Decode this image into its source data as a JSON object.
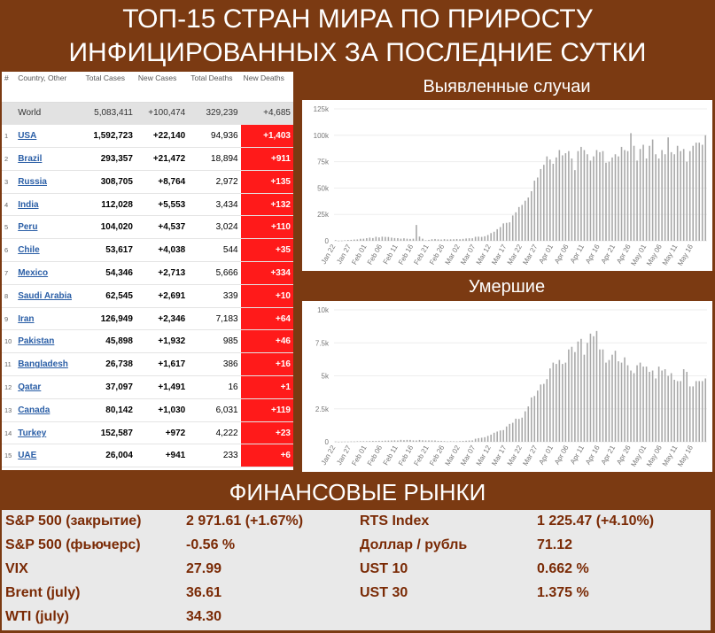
{
  "title_line1": "ТОП-15 СТРАН МИРА ПО ПРИРОСТУ",
  "title_line2": "ИНФИЦИРОВАННЫХ ЗА ПОСЛЕДНИЕ СУТКИ",
  "table": {
    "headers": [
      "#",
      "Country, Other",
      "Total Cases",
      "New Cases",
      "Total Deaths",
      "New Deaths"
    ],
    "world": {
      "name": "World",
      "total_cases": "5,083,411",
      "new_cases": "+100,474",
      "total_deaths": "329,239",
      "new_deaths": "+4,685"
    },
    "rows": [
      {
        "n": "1",
        "country": "USA",
        "total_cases": "1,592,723",
        "new_cases": "+22,140",
        "total_deaths": "94,936",
        "new_deaths": "+1,403"
      },
      {
        "n": "2",
        "country": "Brazil",
        "total_cases": "293,357",
        "new_cases": "+21,472",
        "total_deaths": "18,894",
        "new_deaths": "+911"
      },
      {
        "n": "3",
        "country": "Russia",
        "total_cases": "308,705",
        "new_cases": "+8,764",
        "total_deaths": "2,972",
        "new_deaths": "+135"
      },
      {
        "n": "4",
        "country": "India",
        "total_cases": "112,028",
        "new_cases": "+5,553",
        "total_deaths": "3,434",
        "new_deaths": "+132"
      },
      {
        "n": "5",
        "country": "Peru",
        "total_cases": "104,020",
        "new_cases": "+4,537",
        "total_deaths": "3,024",
        "new_deaths": "+110"
      },
      {
        "n": "6",
        "country": "Chile",
        "total_cases": "53,617",
        "new_cases": "+4,038",
        "total_deaths": "544",
        "new_deaths": "+35"
      },
      {
        "n": "7",
        "country": "Mexico",
        "total_cases": "54,346",
        "new_cases": "+2,713",
        "total_deaths": "5,666",
        "new_deaths": "+334"
      },
      {
        "n": "8",
        "country": "Saudi Arabia",
        "total_cases": "62,545",
        "new_cases": "+2,691",
        "total_deaths": "339",
        "new_deaths": "+10"
      },
      {
        "n": "9",
        "country": "Iran",
        "total_cases": "126,949",
        "new_cases": "+2,346",
        "total_deaths": "7,183",
        "new_deaths": "+64"
      },
      {
        "n": "10",
        "country": "Pakistan",
        "total_cases": "45,898",
        "new_cases": "+1,932",
        "total_deaths": "985",
        "new_deaths": "+46"
      },
      {
        "n": "11",
        "country": "Bangladesh",
        "total_cases": "26,738",
        "new_cases": "+1,617",
        "total_deaths": "386",
        "new_deaths": "+16"
      },
      {
        "n": "12",
        "country": "Qatar",
        "total_cases": "37,097",
        "new_cases": "+1,491",
        "total_deaths": "16",
        "new_deaths": "+1"
      },
      {
        "n": "13",
        "country": "Canada",
        "total_cases": "80,142",
        "new_cases": "+1,030",
        "total_deaths": "6,031",
        "new_deaths": "+119"
      },
      {
        "n": "14",
        "country": "Turkey",
        "total_cases": "152,587",
        "new_cases": "+972",
        "total_deaths": "4,222",
        "new_deaths": "+23"
      },
      {
        "n": "15",
        "country": "UAE",
        "total_cases": "26,004",
        "new_cases": "+941",
        "total_deaths": "233",
        "new_deaths": "+6"
      }
    ]
  },
  "chart_data": [
    {
      "type": "bar",
      "title": "Выявленные случаи",
      "ylim": [
        0,
        125000
      ],
      "yticks": [
        "0",
        "25k",
        "50k",
        "75k",
        "100k",
        "125k"
      ],
      "xtick_labels": [
        "Jan 22",
        "Jan 27",
        "Feb 01",
        "Feb 06",
        "Feb 11",
        "Feb 16",
        "Feb 21",
        "Feb 26",
        "Mar 02",
        "Mar 07",
        "Mar 12",
        "Mar 17",
        "Mar 22",
        "Mar 27",
        "Apr 01",
        "Apr 06",
        "Apr 11",
        "Apr 16",
        "Apr 21",
        "Apr 26",
        "May 01",
        "May 06",
        "May 11",
        "May 16"
      ],
      "values": [
        600,
        100,
        200,
        500,
        800,
        900,
        1200,
        1300,
        1900,
        2000,
        2500,
        3000,
        2600,
        3800,
        3200,
        3900,
        3700,
        3600,
        3000,
        2600,
        2500,
        2000,
        2400,
        2000,
        1800,
        2000,
        15000,
        4000,
        2000,
        500,
        900,
        1500,
        1700,
        1400,
        1200,
        1600,
        1300,
        1400,
        1500,
        1700,
        1500,
        1800,
        2200,
        2400,
        2400,
        3800,
        3900,
        3700,
        4300,
        5500,
        7300,
        8600,
        11000,
        13000,
        16500,
        17000,
        17500,
        24000,
        27000,
        32000,
        34000,
        38000,
        41000,
        47000,
        57000,
        60000,
        68000,
        72000,
        80000,
        77000,
        73000,
        79000,
        86000,
        81000,
        83000,
        85000,
        78000,
        67000,
        85000,
        89000,
        86000,
        82000,
        76000,
        80000,
        86000,
        84000,
        85000,
        74000,
        75000,
        79000,
        82000,
        80000,
        89000,
        86000,
        85000,
        102000,
        90000,
        76000,
        87000,
        91000,
        78000,
        90000,
        96000,
        82000,
        78000,
        86000,
        82000,
        98000,
        84000,
        82000,
        90000,
        85000,
        87000,
        75000,
        85000,
        90000,
        93000,
        93000,
        91000,
        100000
      ],
      "color": "#a8a8a8"
    },
    {
      "type": "bar",
      "title": "Умершие",
      "ylim": [
        0,
        10000
      ],
      "yticks": [
        "0",
        "2.5k",
        "5k",
        "7.5k",
        "10k"
      ],
      "xtick_labels": [
        "Jan 22",
        "Jan 27",
        "Feb 01",
        "Feb 06",
        "Feb 11",
        "Feb 16",
        "Feb 21",
        "Feb 26",
        "Mar 02",
        "Mar 07",
        "Mar 12",
        "Mar 17",
        "Mar 22",
        "Mar 27",
        "Apr 01",
        "Apr 06",
        "Apr 11",
        "Apr 16",
        "Apr 21",
        "Apr 26",
        "May 01",
        "May 06",
        "May 11",
        "May 16"
      ],
      "values": [
        17,
        0,
        8,
        16,
        14,
        26,
        26,
        38,
        43,
        46,
        45,
        57,
        64,
        65,
        73,
        73,
        86,
        89,
        97,
        108,
        97,
        146,
        121,
        143,
        142,
        105,
        98,
        139,
        112,
        99,
        104,
        103,
        98,
        71,
        68,
        52,
        29,
        44,
        38,
        32,
        52,
        67,
        80,
        97,
        105,
        230,
        275,
        308,
        348,
        446,
        542,
        685,
        776,
        856,
        885,
        1160,
        1353,
        1440,
        1750,
        1730,
        1830,
        2310,
        2680,
        3360,
        3470,
        3880,
        4340,
        4390,
        4750,
        5560,
        6000,
        5900,
        6200,
        5900,
        6000,
        7000,
        7200,
        6800,
        7600,
        7800,
        6600,
        7500,
        8200,
        8000,
        8400,
        7000,
        7000,
        6000,
        6200,
        6600,
        6900,
        6100,
        6000,
        6400,
        5800,
        5400,
        5200,
        5800,
        6000,
        5700,
        5700,
        5300,
        5400,
        4800,
        5700,
        5400,
        5500,
        5000,
        5200,
        4700,
        4600,
        4600,
        5500,
        5300,
        4200,
        4200,
        4600,
        4600,
        4600,
        4800
      ],
      "color": "#a8a8a8"
    }
  ],
  "finance": {
    "title": "ФИНАНСОВЫЕ РЫНКИ",
    "left": [
      {
        "label": "S&P 500 (закрытие)",
        "value": "2 971.61 (+1.67%)"
      },
      {
        "label": "S&P 500 (фьючерс)",
        "value": "-0.56 %"
      },
      {
        "label": "VIX",
        "value": "27.99"
      },
      {
        "label": "Brent (july)",
        "value": "36.61"
      },
      {
        "label": "WTI (july)",
        "value": "34.30"
      }
    ],
    "right": [
      {
        "label": "RTS Index",
        "value": "1 225.47 (+4.10%)"
      },
      {
        "label": "Доллар / рубль",
        "value": "71.12"
      },
      {
        "label": "UST 10",
        "value": "0.662 %"
      },
      {
        "label": "UST 30",
        "value": "1.375 %"
      }
    ]
  }
}
